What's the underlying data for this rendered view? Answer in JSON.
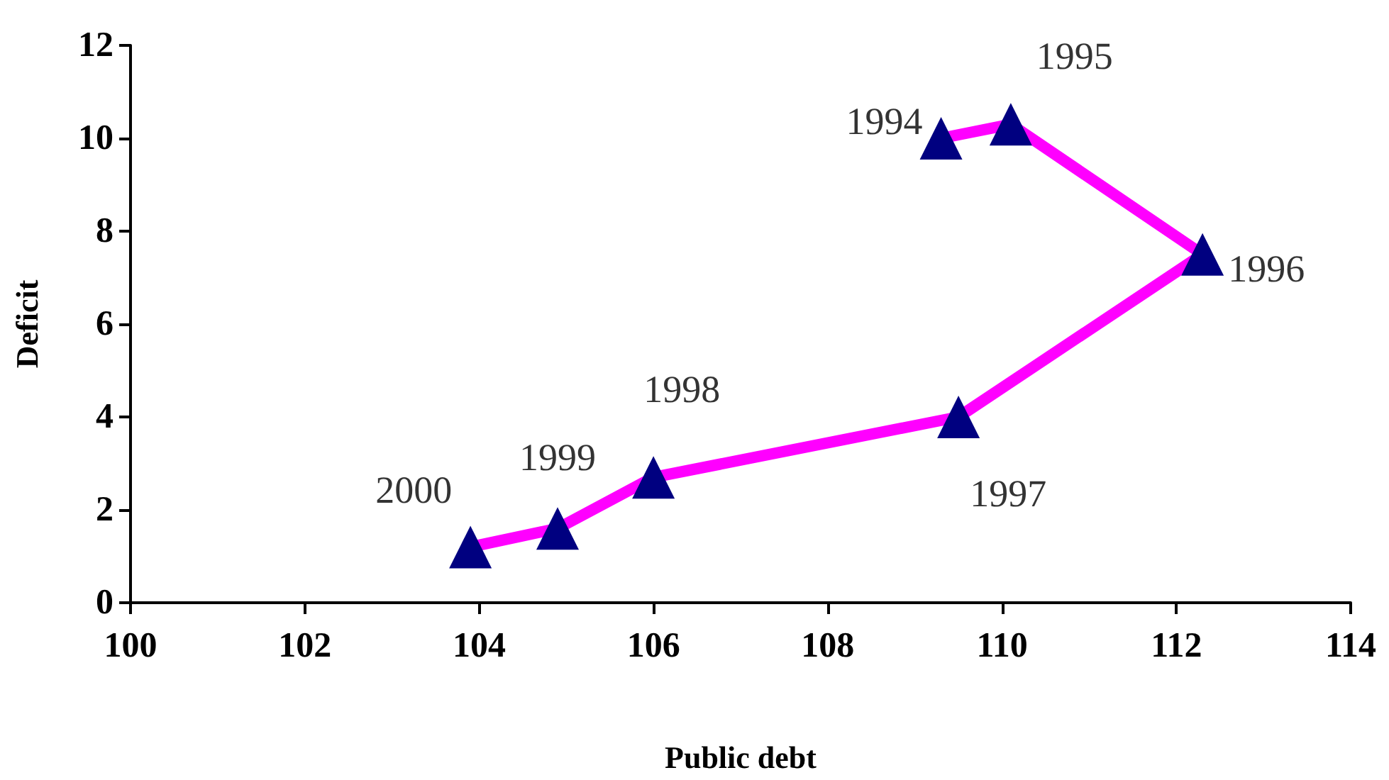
{
  "chart_data": {
    "type": "line",
    "xlabel": "Public debt",
    "ylabel": "Deficit",
    "x": [
      109.3,
      110.1,
      112.3,
      109.5,
      106.0,
      104.9,
      103.9
    ],
    "series": [
      {
        "color": "#ff00ff",
        "colors": [
          "#000080",
          "#000080",
          "#000080",
          "#000080",
          "#000080",
          "#000080",
          "#000080"
        ],
        "values": [
          10.0,
          10.3,
          7.5,
          4.0,
          2.7,
          1.6,
          1.2
        ]
      }
    ],
    "annotations": [
      {
        "text": "1994",
        "x": 109.3,
        "y": 10.0
      },
      {
        "text": "1995",
        "x": 110.1,
        "y": 10.3
      },
      {
        "text": "1996",
        "x": 112.3,
        "y": 7.5
      },
      {
        "text": "1997",
        "x": 109.5,
        "y": 4.0
      },
      {
        "text": "1998",
        "x": 106.0,
        "y": 2.7
      },
      {
        "text": "1999",
        "x": 104.9,
        "y": 1.6
      },
      {
        "text": "2000",
        "x": 103.9,
        "y": 1.2
      }
    ],
    "xlim": [
      100,
      114
    ],
    "xticks": [
      100,
      102,
      104,
      106,
      108,
      110,
      112,
      114
    ],
    "ylim": [
      0,
      12
    ],
    "yticks": [
      0,
      2,
      4,
      6,
      8,
      10,
      12
    ],
    "grid": false,
    "marker": "triangle",
    "line_style": "solid"
  }
}
